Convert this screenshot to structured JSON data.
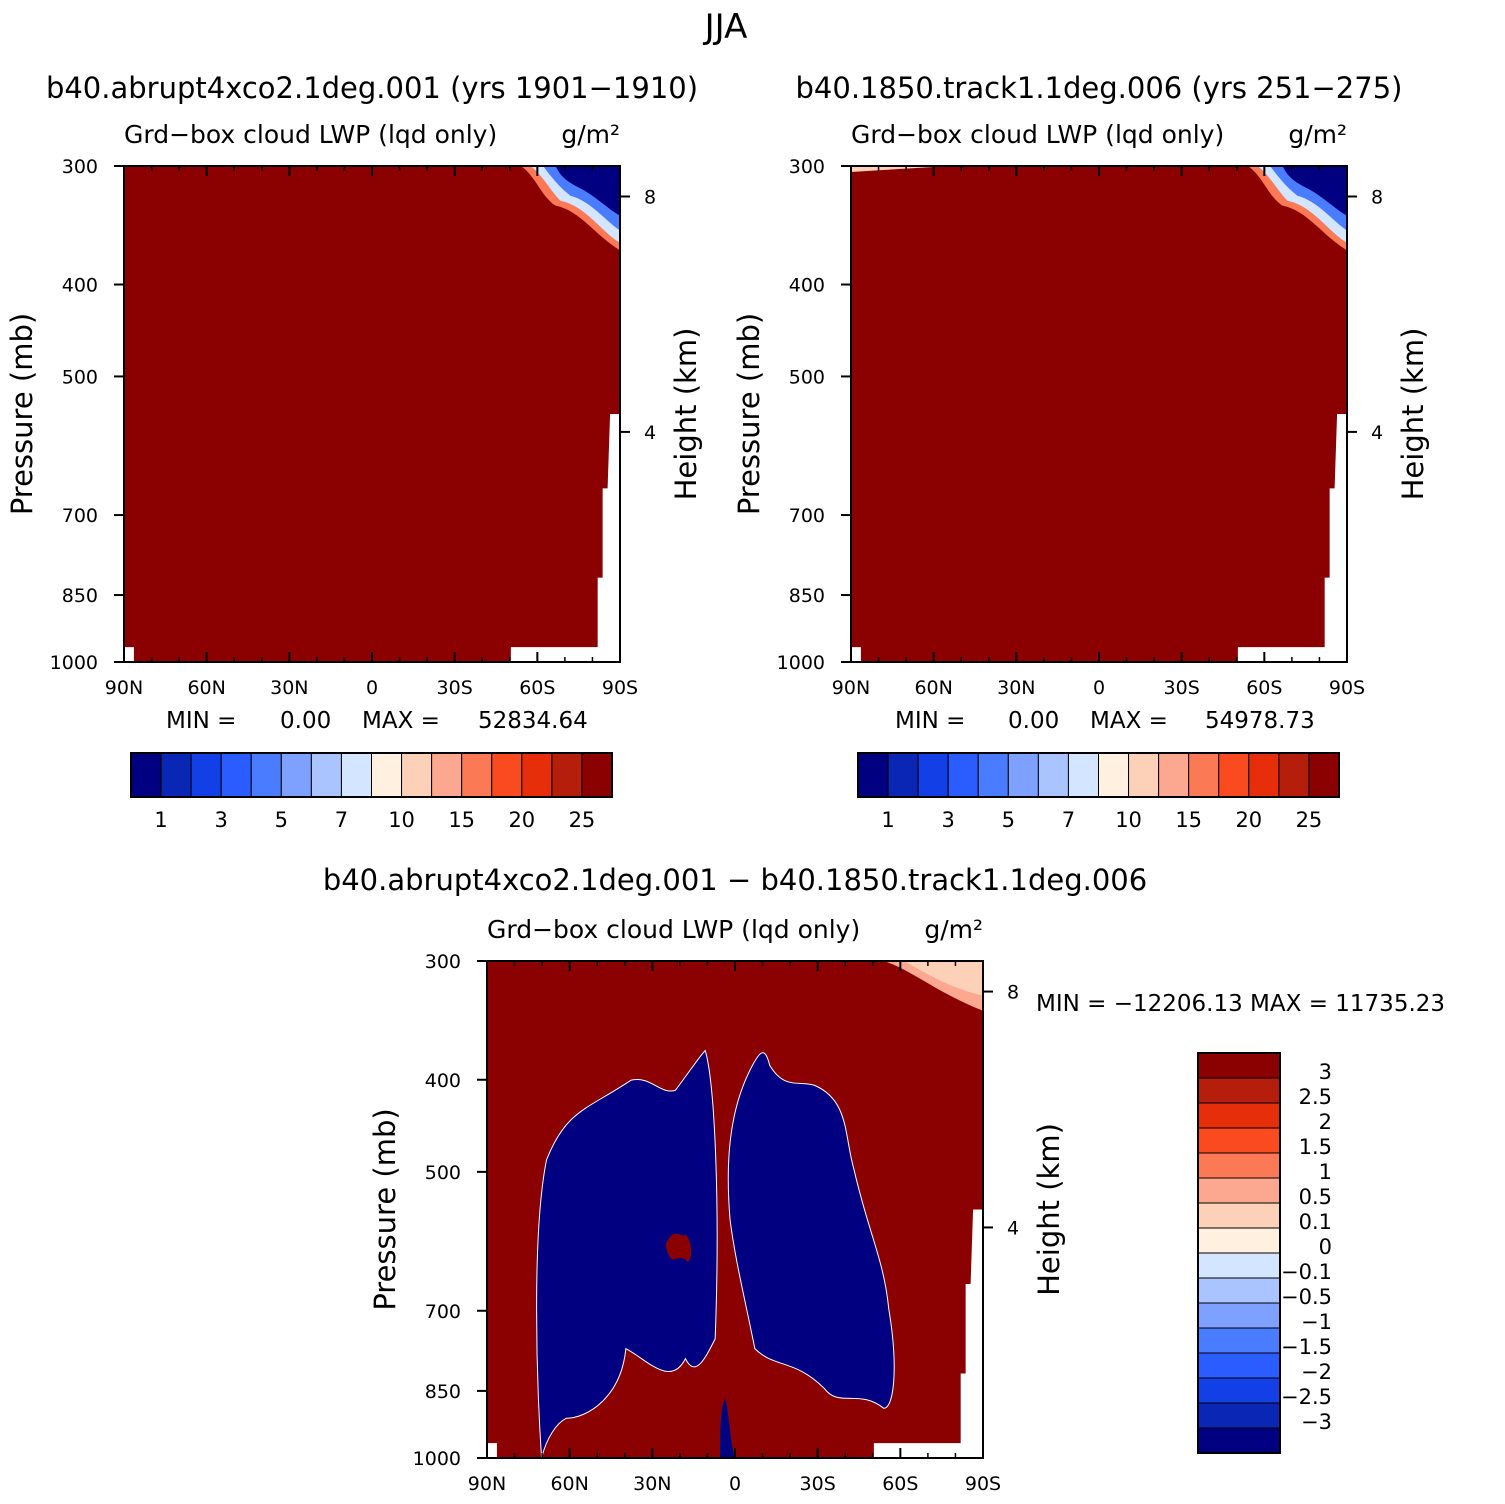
{
  "figure": {
    "suptitle": "JJA",
    "colors": {
      "red": "#8b0000",
      "blue": "#000080",
      "white": "#ffffff",
      "seq_palette": [
        "#000080",
        "#0a26b4",
        "#1240e6",
        "#2a5cff",
        "#4a7cff",
        "#7ea0ff",
        "#aac4ff",
        "#d4e6ff",
        "#fff0e0",
        "#fdd0b8",
        "#fca890",
        "#fb7a55",
        "#fa4a20",
        "#e62e0a",
        "#b41e0a",
        "#8b0000"
      ],
      "diff_palette": [
        "#000080",
        "#0a26b4",
        "#1240e6",
        "#2a5cff",
        "#4a7cff",
        "#7ea0ff",
        "#aac4ff",
        "#d4e6ff",
        "#fff0e0",
        "#fdd0b8",
        "#fca890",
        "#fb7a55",
        "#fa4a20",
        "#e62e0a",
        "#b41e0a",
        "#8b0000"
      ]
    }
  },
  "chart_data": [
    {
      "type": "heatmap",
      "title": "b40.abrupt4xco2.1deg.001 (yrs 1901−1910)",
      "left_label": "Grd−box cloud LWP (lqd only)",
      "right_label": "g/m²",
      "ylabel": "Pressure (mb)",
      "y2label": "Height (km)",
      "xticks": [
        "90N",
        "60N",
        "30N",
        "0",
        "30S",
        "60S",
        "90S"
      ],
      "yticks": [
        300,
        400,
        500,
        700,
        850,
        1000
      ],
      "y2ticks": [
        8,
        4
      ],
      "ylim": [
        300,
        1000
      ],
      "log_scale_y": true,
      "min_label": "MIN =",
      "min_value": "0.00",
      "max_label": "MAX =",
      "max_value": "52834.64",
      "colorbar_labels": [
        "1",
        "3",
        "5",
        "7",
        "10",
        "15",
        "20",
        "25"
      ],
      "colorbar_orientation": "horizontal"
    },
    {
      "type": "heatmap",
      "title": "b40.1850.track1.1deg.006 (yrs 251−275)",
      "left_label": "Grd−box cloud LWP (lqd only)",
      "right_label": "g/m²",
      "ylabel": "Pressure (mb)",
      "y2label": "Height (km)",
      "xticks": [
        "90N",
        "60N",
        "30N",
        "0",
        "30S",
        "60S",
        "90S"
      ],
      "yticks": [
        300,
        400,
        500,
        700,
        850,
        1000
      ],
      "y2ticks": [
        8,
        4
      ],
      "ylim": [
        300,
        1000
      ],
      "log_scale_y": true,
      "min_label": "MIN =",
      "min_value": "0.00",
      "max_label": "MAX =",
      "max_value": "54978.73",
      "colorbar_labels": [
        "1",
        "3",
        "5",
        "7",
        "10",
        "15",
        "20",
        "25"
      ],
      "colorbar_orientation": "horizontal"
    },
    {
      "type": "heatmap",
      "title": "b40.abrupt4xco2.1deg.001 − b40.1850.track1.1deg.006",
      "left_label": "Grd−box cloud LWP (lqd only)",
      "right_label": "g/m²",
      "ylabel": "Pressure (mb)",
      "y2label": "Height (km)",
      "xticks": [
        "90N",
        "60N",
        "30N",
        "0",
        "30S",
        "60S",
        "90S"
      ],
      "yticks": [
        300,
        400,
        500,
        700,
        850,
        1000
      ],
      "y2ticks": [
        8,
        4
      ],
      "ylim": [
        300,
        1000
      ],
      "log_scale_y": true,
      "minmax_text": "MIN = −12206.13   MAX = 11735.23",
      "colorbar_labels": [
        "3",
        "2.5",
        "2",
        "1.5",
        "1",
        "0.5",
        "0.1",
        "0",
        "−0.1",
        "−0.5",
        "−1",
        "−1.5",
        "−2",
        "−2.5",
        "−3"
      ],
      "colorbar_orientation": "vertical"
    }
  ]
}
